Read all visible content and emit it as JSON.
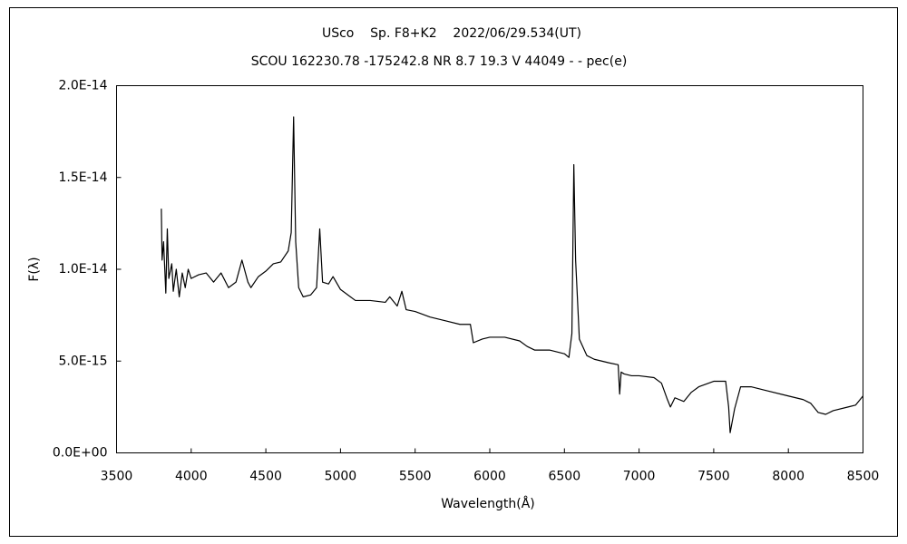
{
  "chart_data": {
    "type": "line",
    "title": "USco    Sp. F8+K2    2022/06/29.534(UT)",
    "subtitle": "SCOU 162230.78 -175242.8 NR 8.7 19.3 V 44049 - - pec(e)",
    "x_label": "Wavelength(Å)",
    "y_label": "F(λ)",
    "color": "#000000",
    "x": [
      3800,
      3805,
      3815,
      3830,
      3840,
      3850,
      3870,
      3880,
      3900,
      3920,
      3940,
      3960,
      3980,
      4000,
      4050,
      4100,
      4150,
      4200,
      4250,
      4300,
      4340,
      4380,
      4400,
      4450,
      4500,
      4550,
      4600,
      4650,
      4670,
      4686,
      4700,
      4720,
      4750,
      4800,
      4840,
      4861,
      4880,
      4920,
      4950,
      5000,
      5050,
      5100,
      5200,
      5300,
      5330,
      5380,
      5411,
      5440,
      5500,
      5600,
      5700,
      5800,
      5870,
      5890,
      5950,
      6000,
      6100,
      6200,
      6250,
      6300,
      6400,
      6500,
      6530,
      6550,
      6563,
      6575,
      6600,
      6650,
      6700,
      6800,
      6860,
      6870,
      6880,
      6900,
      6950,
      7000,
      7100,
      7150,
      7190,
      7210,
      7240,
      7300,
      7350,
      7400,
      7500,
      7580,
      7600,
      7610,
      7640,
      7680,
      7750,
      7850,
      8000,
      8100,
      8150,
      8200,
      8250,
      8300,
      8400,
      8450,
      8500
    ],
    "values": [
      1.33e-14,
      1.05e-14,
      1.15e-14,
      8.7e-15,
      1.22e-14,
      9.5e-15,
      1.03e-14,
      8.8e-15,
      1e-14,
      8.5e-15,
      9.8e-15,
      9e-15,
      1e-14,
      9.5e-15,
      9.7e-15,
      9.8e-15,
      9.3e-15,
      9.8e-15,
      9e-15,
      9.3e-15,
      1.05e-14,
      9.3e-15,
      9e-15,
      9.6e-15,
      9.9e-15,
      1.03e-14,
      1.04e-14,
      1.1e-14,
      1.2e-14,
      1.83e-14,
      1.15e-14,
      9e-15,
      8.5e-15,
      8.6e-15,
      9e-15,
      1.22e-14,
      9.3e-15,
      9.2e-15,
      9.6e-15,
      8.9e-15,
      8.6e-15,
      8.3e-15,
      8.3e-15,
      8.2e-15,
      8.5e-15,
      8e-15,
      8.8e-15,
      7.8e-15,
      7.7e-15,
      7.4e-15,
      7.2e-15,
      7e-15,
      7e-15,
      6e-15,
      6.2e-15,
      6.3e-15,
      6.3e-15,
      6.1e-15,
      5.8e-15,
      5.6e-15,
      5.6e-15,
      5.4e-15,
      5.2e-15,
      6.5e-15,
      1.57e-14,
      1.05e-14,
      6.2e-15,
      5.3e-15,
      5.1e-15,
      4.9e-15,
      4.8e-15,
      3.2e-15,
      4.4e-15,
      4.3e-15,
      4.2e-15,
      4.2e-15,
      4.1e-15,
      3.8e-15,
      2.9e-15,
      2.5e-15,
      3e-15,
      2.8e-15,
      3.3e-15,
      3.6e-15,
      3.9e-15,
      3.9e-15,
      2.5e-15,
      1.1e-15,
      2.4e-15,
      3.6e-15,
      3.6e-15,
      3.4e-15,
      3.1e-15,
      2.9e-15,
      2.7e-15,
      2.2e-15,
      2.1e-15,
      2.3e-15,
      2.5e-15,
      2.6e-15,
      3.1e-15
    ],
    "xlim": [
      3500,
      8500
    ],
    "xticks": [
      3500,
      4000,
      4500,
      5000,
      5500,
      6000,
      6500,
      7000,
      7500,
      8000,
      8500
    ],
    "ylim": [
      0,
      2e-14
    ],
    "yticks": [
      {
        "value": 0,
        "label": "0.0E+00"
      },
      {
        "value": 5e-15,
        "label": "5.0E-15"
      },
      {
        "value": 1e-14,
        "label": "1.0E-14"
      },
      {
        "value": 1.5e-14,
        "label": "1.5E-14"
      },
      {
        "value": 2e-14,
        "label": "2.0E-14"
      }
    ],
    "grid": false
  }
}
